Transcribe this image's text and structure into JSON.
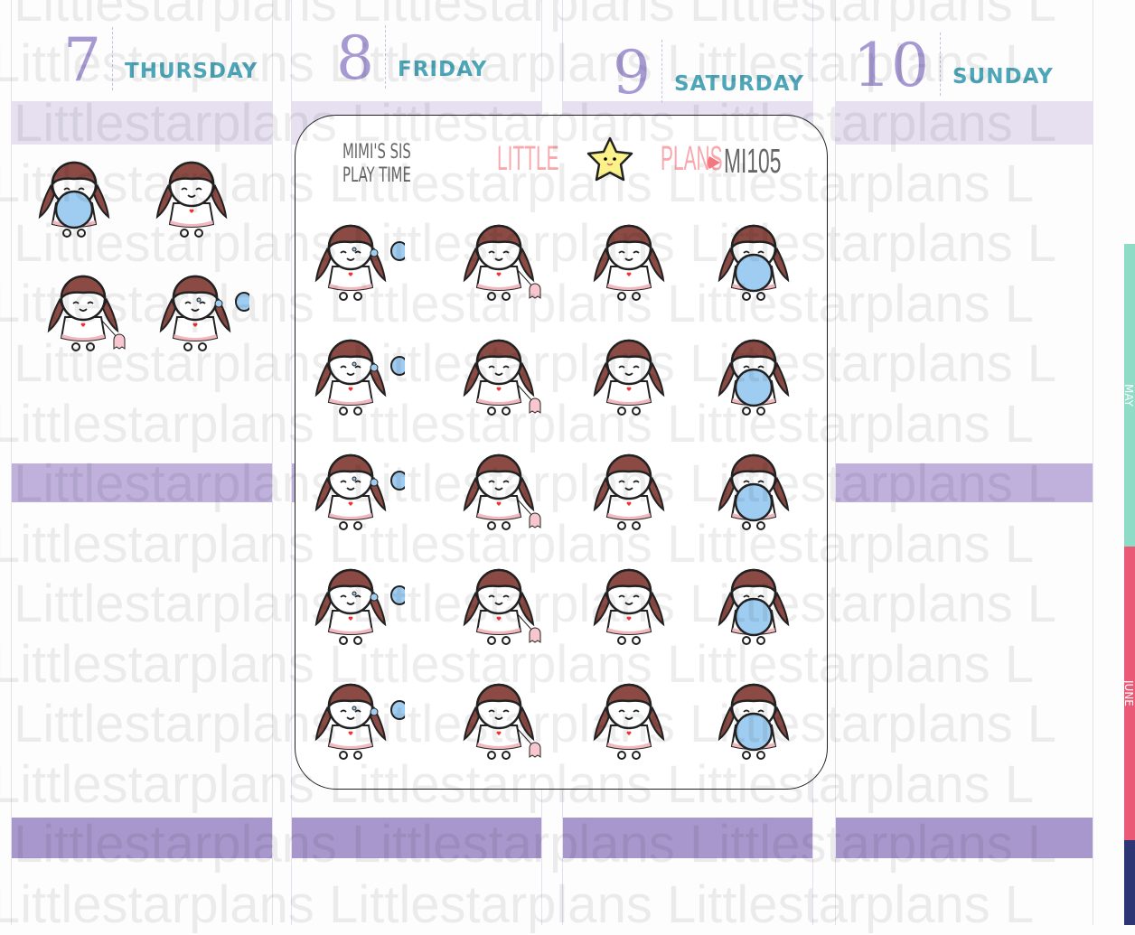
{
  "days": [
    {
      "num": "7",
      "name": "THURSDAY"
    },
    {
      "num": "8",
      "name": "FRIDAY"
    },
    {
      "num": "9",
      "name": "SATURDAY"
    },
    {
      "num": "10",
      "name": "SUNDAY"
    }
  ],
  "watermark": "Littlestarplans Littlestarplans Littlestarplans L",
  "sheet": {
    "title_line1": "MIMI'S SIS",
    "title_line2": "PLAY TIME",
    "logo_left": "LITTLE",
    "logo_right": "PLANS",
    "code": "MI105"
  },
  "side_tabs": [
    {
      "label": "MAY",
      "color": "#8fdcc6"
    },
    {
      "label": "JUNE",
      "color": "#ea5a76"
    }
  ],
  "colors": {
    "hair": "#8b4a44",
    "bubble": "#9fcdf2",
    "accent_purple": "#a79ad3",
    "accent_teal": "#4ea6b9"
  },
  "sticker_variants": [
    "bubble",
    "ghost",
    "happy",
    "ball"
  ]
}
